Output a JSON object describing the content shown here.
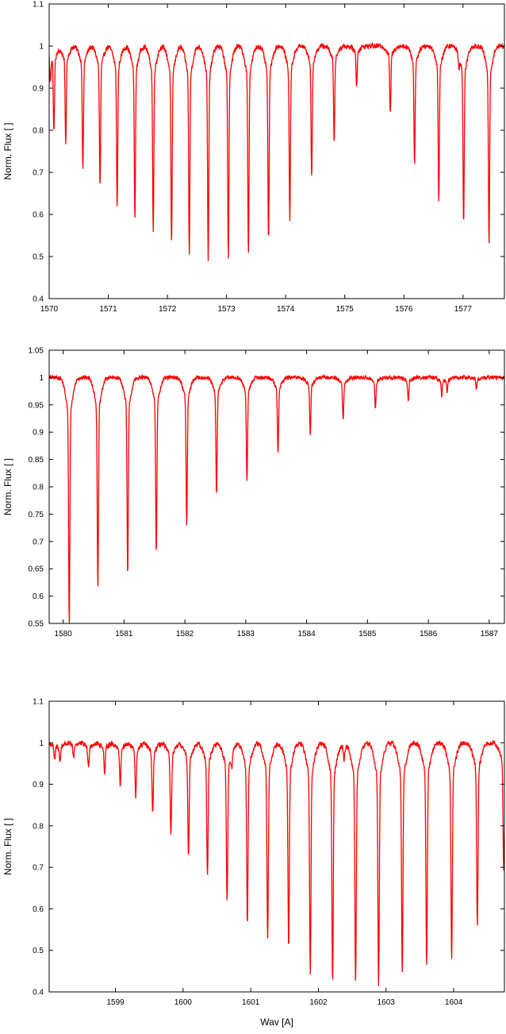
{
  "chart_data": [
    {
      "type": "line",
      "ylabel": "Norm. Flux [ ]",
      "xlabel": "",
      "xlim": [
        1570.0,
        1577.7
      ],
      "ylim": [
        0.4,
        1.1
      ],
      "xticks": [
        1570,
        1571,
        1572,
        1573,
        1574,
        1575,
        1576,
        1577
      ],
      "yticks": [
        0.4,
        0.5,
        0.6,
        0.7,
        0.8,
        0.9,
        1.0,
        1.1
      ],
      "ytick_labels": [
        "0.4",
        "0.5",
        "0.6",
        "0.7",
        "0.8",
        "0.9",
        "1",
        "1.1"
      ],
      "color": "#ff0000",
      "grid": false,
      "continuum": 1.0,
      "absorption_lines": [
        {
          "x": 1570.02,
          "depth": 0.93
        },
        {
          "x": 1570.08,
          "depth": 0.8
        },
        {
          "x": 1570.28,
          "depth": 0.77
        },
        {
          "x": 1570.57,
          "depth": 0.705
        },
        {
          "x": 1570.86,
          "depth": 0.665
        },
        {
          "x": 1571.15,
          "depth": 0.62
        },
        {
          "x": 1571.45,
          "depth": 0.588
        },
        {
          "x": 1571.76,
          "depth": 0.558
        },
        {
          "x": 1572.07,
          "depth": 0.525
        },
        {
          "x": 1572.37,
          "depth": 0.503
        },
        {
          "x": 1572.69,
          "depth": 0.49
        },
        {
          "x": 1573.03,
          "depth": 0.49
        },
        {
          "x": 1573.37,
          "depth": 0.507
        },
        {
          "x": 1573.71,
          "depth": 0.532
        },
        {
          "x": 1574.07,
          "depth": 0.585
        },
        {
          "x": 1574.44,
          "depth": 0.685
        },
        {
          "x": 1574.82,
          "depth": 0.775
        },
        {
          "x": 1575.2,
          "depth": 0.905
        },
        {
          "x": 1575.77,
          "depth": 0.84
        },
        {
          "x": 1576.18,
          "depth": 0.72
        },
        {
          "x": 1576.59,
          "depth": 0.635
        },
        {
          "x": 1577.01,
          "depth": 0.577
        },
        {
          "x": 1577.44,
          "depth": 0.528
        },
        {
          "x": 1576.93,
          "depth": 0.97
        }
      ]
    },
    {
      "type": "line",
      "ylabel": "Norm. Flux [ ]",
      "xlabel": "",
      "xlim": [
        1579.77,
        1587.25
      ],
      "ylim": [
        0.55,
        1.05
      ],
      "xticks": [
        1580,
        1581,
        1582,
        1583,
        1584,
        1585,
        1586,
        1587
      ],
      "yticks": [
        0.55,
        0.6,
        0.65,
        0.7,
        0.75,
        0.8,
        0.85,
        0.9,
        0.95,
        1.0,
        1.05
      ],
      "ytick_labels": [
        "0.55",
        "0.6",
        "0.65",
        "0.7",
        "0.75",
        "0.8",
        "0.85",
        "0.9",
        "0.95",
        "1",
        "1.05"
      ],
      "color": "#ff0000",
      "grid": false,
      "continuum": 1.0,
      "absorption_lines": [
        {
          "x": 1580.1,
          "depth": 0.55
        },
        {
          "x": 1580.57,
          "depth": 0.613
        },
        {
          "x": 1581.06,
          "depth": 0.637
        },
        {
          "x": 1581.53,
          "depth": 0.681
        },
        {
          "x": 1582.03,
          "depth": 0.728
        },
        {
          "x": 1582.52,
          "depth": 0.785
        },
        {
          "x": 1583.02,
          "depth": 0.812
        },
        {
          "x": 1583.53,
          "depth": 0.861
        },
        {
          "x": 1584.06,
          "depth": 0.895
        },
        {
          "x": 1584.6,
          "depth": 0.922
        },
        {
          "x": 1585.13,
          "depth": 0.943
        },
        {
          "x": 1585.67,
          "depth": 0.958
        },
        {
          "x": 1586.22,
          "depth": 0.967
        },
        {
          "x": 1586.31,
          "depth": 0.975
        },
        {
          "x": 1586.79,
          "depth": 0.98
        }
      ]
    },
    {
      "type": "line",
      "ylabel": "Norm. Flux [ ]",
      "xlabel": "Wav [A]",
      "xlim": [
        1598.02,
        1604.75
      ],
      "ylim": [
        0.4,
        1.1
      ],
      "xticks": [
        1599,
        1600,
        1601,
        1602,
        1603,
        1604
      ],
      "yticks": [
        0.4,
        0.5,
        0.6,
        0.7,
        0.8,
        0.9,
        1.0,
        1.1
      ],
      "ytick_labels": [
        "0.4",
        "0.5",
        "0.6",
        "0.7",
        "0.8",
        "0.9",
        "1",
        "1.1"
      ],
      "color": "#ff0000",
      "grid": false,
      "continuum": 1.0,
      "absorption_lines": [
        {
          "x": 1598.1,
          "depth": 0.96
        },
        {
          "x": 1598.18,
          "depth": 0.955
        },
        {
          "x": 1598.38,
          "depth": 0.965
        },
        {
          "x": 1598.6,
          "depth": 0.94
        },
        {
          "x": 1598.84,
          "depth": 0.925
        },
        {
          "x": 1599.07,
          "depth": 0.898
        },
        {
          "x": 1599.3,
          "depth": 0.87
        },
        {
          "x": 1599.55,
          "depth": 0.83
        },
        {
          "x": 1599.82,
          "depth": 0.777
        },
        {
          "x": 1600.08,
          "depth": 0.727
        },
        {
          "x": 1600.36,
          "depth": 0.678
        },
        {
          "x": 1600.65,
          "depth": 0.617
        },
        {
          "x": 1600.72,
          "depth": 0.965
        },
        {
          "x": 1600.95,
          "depth": 0.565
        },
        {
          "x": 1601.25,
          "depth": 0.527
        },
        {
          "x": 1601.56,
          "depth": 0.505
        },
        {
          "x": 1601.88,
          "depth": 0.448
        },
        {
          "x": 1602.21,
          "depth": 0.423
        },
        {
          "x": 1602.55,
          "depth": 0.42
        },
        {
          "x": 1602.89,
          "depth": 0.415
        },
        {
          "x": 1602.38,
          "depth": 0.96
        },
        {
          "x": 1603.24,
          "depth": 0.443
        },
        {
          "x": 1603.6,
          "depth": 0.465
        },
        {
          "x": 1603.97,
          "depth": 0.477
        },
        {
          "x": 1604.35,
          "depth": 0.555
        },
        {
          "x": 1604.74,
          "depth": 0.69
        }
      ]
    }
  ]
}
